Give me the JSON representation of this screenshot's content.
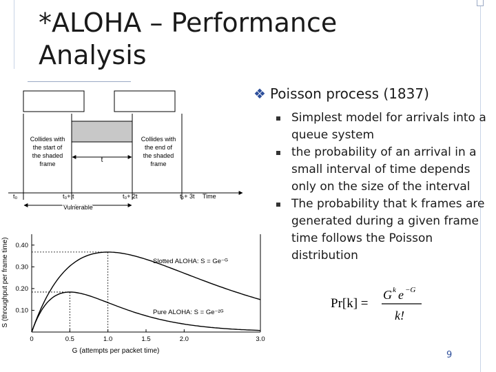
{
  "slide": {
    "title": "*ALOHA – Performance Analysis",
    "page_number": "9"
  },
  "bullets": {
    "main": "Poisson process (1837)",
    "subs": [
      "Simplest model for arrivals into a queue system",
      "the probability of an arrival in a small interval of time depends only on the size of the interval",
      "The probability that k frames are generated during a given frame time follows the Poisson distribution"
    ]
  },
  "formula": {
    "lhs": "Pr[k] =",
    "numerator_base": "G",
    "numerator_exp1": "k",
    "numerator_e": "e",
    "numerator_exp2": "−G",
    "denominator": "k!"
  },
  "timing_diagram": {
    "left_label": "Collides with\nthe start of\nthe shaded\nframe",
    "right_label": "Collides with\nthe end of\nthe shaded\nframe",
    "t_label": "t",
    "ticks": [
      "t₀",
      "t₀+ t",
      "t₀+ 2t",
      "t₀+ 3t"
    ],
    "time_label": "Time",
    "vulnerable_label": "Vulnerable"
  },
  "chart_data": {
    "type": "line",
    "xlabel": "G (attempts per packet time)",
    "ylabel": "S (throughput per frame time)",
    "xlim": [
      0,
      3.0
    ],
    "ylim": [
      0,
      0.45
    ],
    "x_ticks": [
      "0",
      "0.5",
      "1.0",
      "1.5",
      "2.0",
      "3.0"
    ],
    "x_tick_values": [
      0,
      0.5,
      1.0,
      1.5,
      2.0,
      3.0
    ],
    "y_ticks": [
      "0.10",
      "0.20",
      "0.30",
      "0.40"
    ],
    "y_tick_values": [
      0.1,
      0.2,
      0.3,
      0.4
    ],
    "series": [
      {
        "name": "Slotted ALOHA: S = Ge⁻ᴳ",
        "formula": "G*exp(-G)",
        "color": "#000000"
      },
      {
        "name": "Pure ALOHA: S = Ge⁻²ᴳ",
        "formula": "G*exp(-2G)",
        "color": "#000000"
      }
    ],
    "reference_lines": [
      {
        "y": 0.368,
        "x": 1.0
      },
      {
        "y": 0.184,
        "x": 0.5
      }
    ]
  }
}
